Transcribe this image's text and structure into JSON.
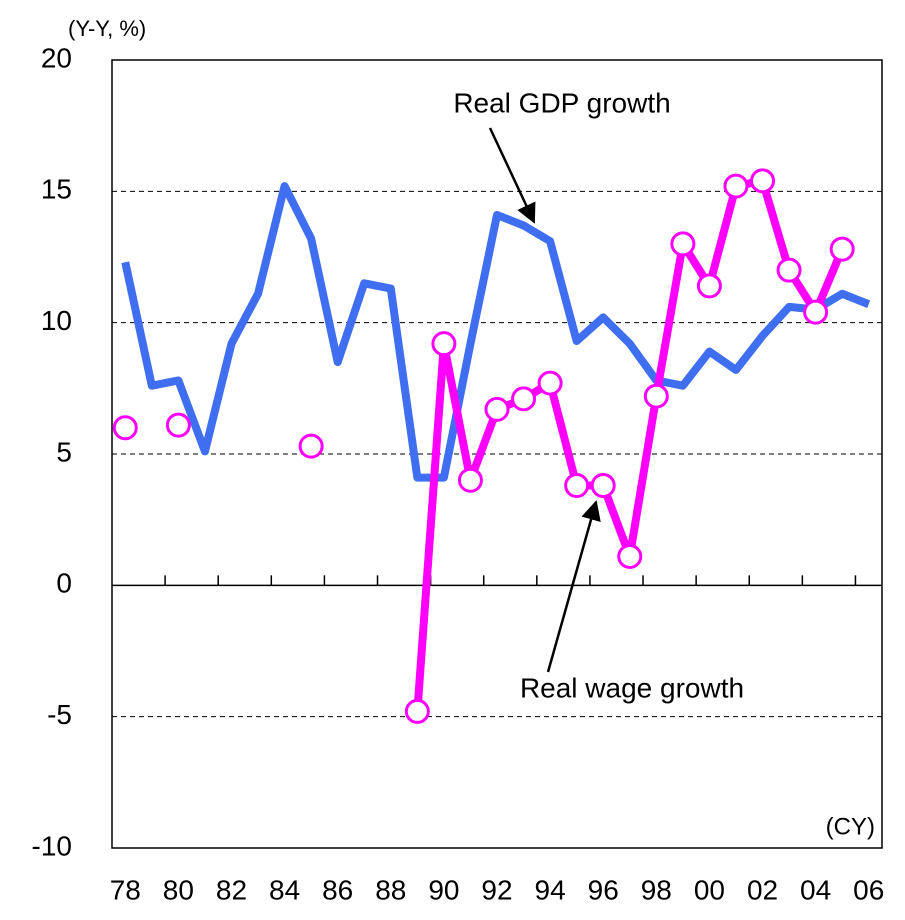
{
  "chart_data": {
    "type": "line",
    "y_label": "(Y-Y, %)",
    "x_label": "(CY)",
    "categories": [
      "78",
      null,
      "80",
      null,
      "82",
      null,
      "84",
      null,
      "86",
      null,
      "88",
      null,
      "90",
      null,
      "92",
      null,
      "94",
      null,
      "96",
      null,
      "98",
      null,
      "00",
      null,
      "02",
      null,
      "04",
      null,
      "06"
    ],
    "series": [
      {
        "name": "Real GDP growth",
        "color": "#3f6ff0",
        "marker": false,
        "values": [
          12.3,
          7.6,
          7.8,
          5.1,
          9.2,
          11.1,
          15.2,
          13.2,
          8.5,
          11.5,
          11.3,
          4.1,
          4.1,
          9.2,
          14.1,
          13.7,
          13.1,
          9.3,
          10.2,
          9.2,
          7.8,
          7.6,
          8.9,
          8.2,
          9.5,
          10.6,
          10.5,
          11.1,
          10.7
        ]
      },
      {
        "name": "Real wage growth",
        "color": "#ff00ff",
        "marker": true,
        "values": [
          6.0,
          null,
          6.1,
          null,
          null,
          null,
          null,
          5.3,
          null,
          null,
          null,
          -4.8,
          9.2,
          4.0,
          6.7,
          7.1,
          7.7,
          3.8,
          3.8,
          1.1,
          7.2,
          13.0,
          11.4,
          15.2,
          15.4,
          12.0,
          10.4,
          12.8,
          null
        ]
      }
    ],
    "ylim": [
      -10,
      20
    ],
    "yticks": [
      -10,
      -5,
      0,
      5,
      10,
      15,
      20
    ],
    "grid": true
  }
}
